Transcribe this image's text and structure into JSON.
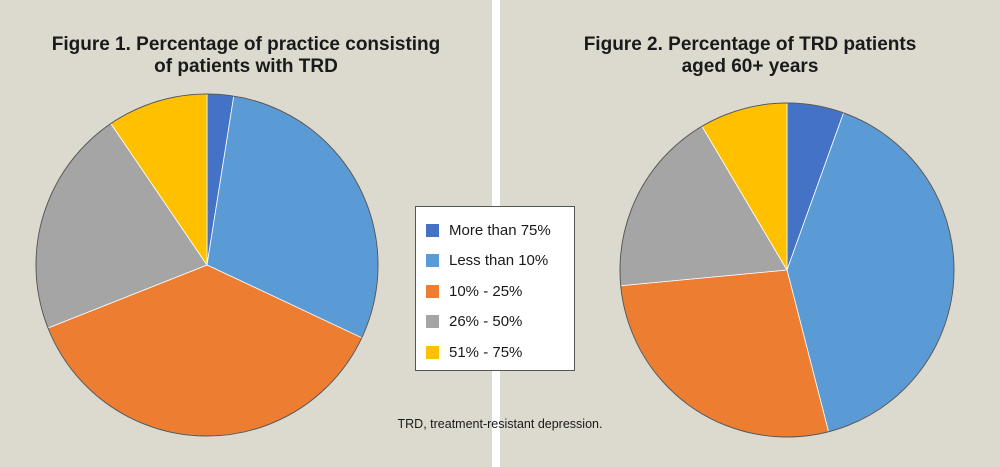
{
  "colors": {
    "panel_bg": "#dcd9ce",
    "series": [
      "#4472c4",
      "#5b9bd5",
      "#ed7d31",
      "#a5a5a5",
      "#ffc000"
    ]
  },
  "legend": {
    "items": [
      "More than 75%",
      "Less than 10%",
      "10% - 25%",
      "26% - 50%",
      "51% - 75%"
    ]
  },
  "footnote": "TRD, treatment-resistant depression.",
  "chart_data": [
    {
      "type": "pie",
      "title_lines": [
        "Figure 1. Percentage of practice consisting",
        "of patients with TRD"
      ],
      "categories": [
        "More than 75%",
        "Less than 10%",
        "10% - 25%",
        "26% - 50%",
        "51% - 75%"
      ],
      "values": [
        2.5,
        29.5,
        37.0,
        21.5,
        9.5
      ]
    },
    {
      "type": "pie",
      "title_lines": [
        "Figure 2. Percentage of TRD patients",
        "aged 60+ years"
      ],
      "categories": [
        "More than 75%",
        "Less than 10%",
        "10% - 25%",
        "26% - 50%",
        "51% - 75%"
      ],
      "values": [
        5.5,
        40.5,
        27.5,
        18.0,
        8.5
      ]
    }
  ]
}
